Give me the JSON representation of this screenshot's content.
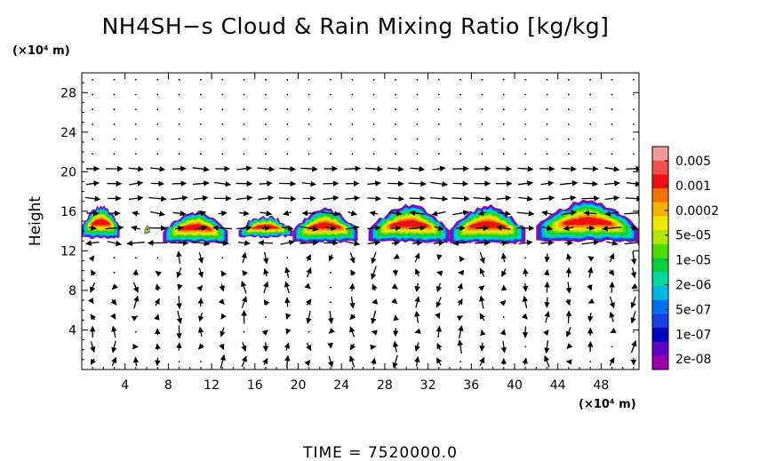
{
  "chart_data": {
    "type": "heatmap",
    "title": "NH4SH−s Cloud & Rain Mixing Ratio [kg/kg]",
    "ylabel": "Height",
    "y_unit_label": "(×10⁴ m)",
    "x_unit_label": "(×10⁴ m)",
    "xlim": [
      0,
      51.5
    ],
    "ylim": [
      0,
      30
    ],
    "x_ticks": [
      4,
      8,
      12,
      16,
      20,
      24,
      28,
      32,
      36,
      40,
      44,
      48
    ],
    "y_ticks": [
      4,
      8,
      12,
      16,
      20,
      24,
      28
    ],
    "colorbar": {
      "labels": [
        "0.005",
        "0.001",
        "0.0002",
        "5e-05",
        "1e-05",
        "2e-06",
        "5e-07",
        "1e-07",
        "2e-08"
      ],
      "colors": [
        "#f29a9a",
        "#f25050",
        "#ee1010",
        "#f57400",
        "#f8b200",
        "#eee800",
        "#b4e800",
        "#50dc00",
        "#00d040",
        "#00d8a0",
        "#00b8e8",
        "#0070f0",
        "#1840e0",
        "#0000c8",
        "#6000c0",
        "#9a00b0"
      ]
    },
    "cloud_cells": [
      {
        "x0": 0,
        "x1": 3.5,
        "ylo": 13.3,
        "yhi": 16.5
      },
      {
        "x0": 5.8,
        "x1": 6.3,
        "ylo": 13.8,
        "yhi": 14.6
      },
      {
        "x0": 7.5,
        "x1": 13.5,
        "ylo": 12.8,
        "yhi": 16.0
      },
      {
        "x0": 14.5,
        "x1": 19.5,
        "ylo": 13.4,
        "yhi": 15.5
      },
      {
        "x0": 19.5,
        "x1": 25.5,
        "ylo": 12.9,
        "yhi": 16.2
      },
      {
        "x0": 26.5,
        "x1": 34.0,
        "ylo": 12.9,
        "yhi": 16.6
      },
      {
        "x0": 34.0,
        "x1": 41.0,
        "ylo": 12.8,
        "yhi": 16.5
      },
      {
        "x0": 42.0,
        "x1": 51.5,
        "ylo": 13.0,
        "yhi": 17.0
      }
    ],
    "vector_field": {
      "x_spacing": 2,
      "y_spacing": 1.5,
      "description_level": "schematic"
    },
    "time_label": "TIME  =  7520000.0"
  }
}
